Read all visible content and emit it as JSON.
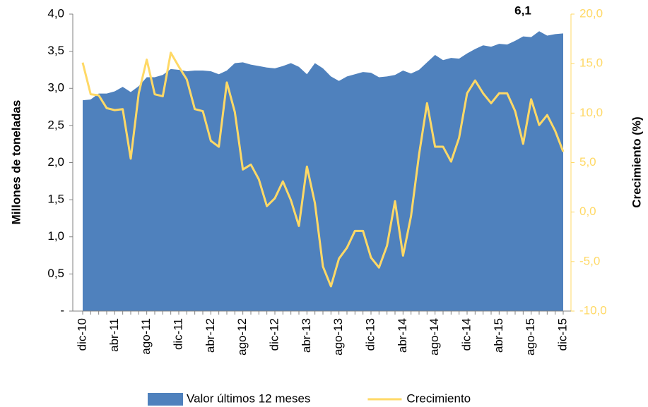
{
  "chart_data": {
    "type": "area-line",
    "annotation": "6,1",
    "ylabel": "Millones de toneladas",
    "y2label": "Crecimiento (%)",
    "categories": [
      "dic-10",
      null,
      null,
      null,
      "abr-11",
      null,
      null,
      null,
      "ago-11",
      null,
      null,
      null,
      "dic-11",
      null,
      null,
      null,
      "abr-12",
      null,
      null,
      null,
      "ago-12",
      null,
      null,
      null,
      "dic-12",
      null,
      null,
      null,
      "abr-13",
      null,
      null,
      null,
      "ago-13",
      null,
      null,
      null,
      "dic-13",
      null,
      null,
      null,
      "abr-14",
      null,
      null,
      null,
      "ago-14",
      null,
      null,
      null,
      "dic-14",
      null,
      null,
      null,
      "abr-15",
      null,
      null,
      null,
      "ago-15",
      null,
      null,
      null,
      "dic-15"
    ],
    "series": [
      {
        "name": "Valor últimos 12 meses",
        "color": "#4f81bd",
        "kind": "area",
        "axis": "y",
        "values": [
          2.84,
          2.85,
          2.93,
          2.93,
          2.96,
          3.02,
          2.95,
          3.03,
          3.15,
          3.15,
          3.18,
          3.26,
          3.25,
          3.23,
          3.24,
          3.24,
          3.23,
          3.19,
          3.24,
          3.34,
          3.35,
          3.32,
          3.3,
          3.28,
          3.27,
          3.3,
          3.34,
          3.29,
          3.19,
          3.34,
          3.27,
          3.16,
          3.1,
          3.16,
          3.19,
          3.22,
          3.21,
          3.15,
          3.16,
          3.18,
          3.24,
          3.2,
          3.25,
          3.35,
          3.45,
          3.38,
          3.41,
          3.4,
          3.47,
          3.53,
          3.58,
          3.56,
          3.6,
          3.59,
          3.64,
          3.7,
          3.69,
          3.77,
          3.71,
          3.73,
          3.74
        ]
      },
      {
        "name": "Crecimiento",
        "color": "#ffd966",
        "kind": "line",
        "axis": "y2",
        "values": [
          15.1,
          11.9,
          11.8,
          10.5,
          10.3,
          10.4,
          5.4,
          12.0,
          15.4,
          11.9,
          11.7,
          16.1,
          14.7,
          13.4,
          10.4,
          10.2,
          7.2,
          6.6,
          13.1,
          10.1,
          4.3,
          4.8,
          3.3,
          0.6,
          1.4,
          3.1,
          1.2,
          -1.4,
          4.6,
          0.9,
          -5.5,
          -7.5,
          -4.7,
          -3.6,
          -1.9,
          -1.9,
          -4.6,
          -5.6,
          -3.4,
          1.1,
          -4.4,
          -0.4,
          5.8,
          11.0,
          6.6,
          6.6,
          5.1,
          7.5,
          12.0,
          13.3,
          12.0,
          11.0,
          12.0,
          12.0,
          10.2,
          6.9,
          11.4,
          8.8,
          9.8,
          8.2,
          6.1
        ]
      }
    ],
    "ylim": [
      0,
      4
    ],
    "yticks": [
      {
        "value": 0,
        "label": "-"
      },
      {
        "value": 0.5,
        "label": "0,5"
      },
      {
        "value": 1,
        "label": "1,0"
      },
      {
        "value": 1.5,
        "label": "1,5"
      },
      {
        "value": 2,
        "label": "2,0"
      },
      {
        "value": 2.5,
        "label": "2,5"
      },
      {
        "value": 3,
        "label": "3,0"
      },
      {
        "value": 3.5,
        "label": "3,5"
      },
      {
        "value": 4,
        "label": "4,0"
      }
    ],
    "y2lim": [
      -10,
      20
    ],
    "y2ticks": [
      {
        "value": -10,
        "label": "-10,0"
      },
      {
        "value": -5,
        "label": "-5,0"
      },
      {
        "value": 0,
        "label": "0,0"
      },
      {
        "value": 5,
        "label": "5,0"
      },
      {
        "value": 10,
        "label": "10,0"
      },
      {
        "value": 15,
        "label": "15,0"
      },
      {
        "value": 20,
        "label": "20,0"
      }
    ],
    "y2color": "#ffd966"
  }
}
